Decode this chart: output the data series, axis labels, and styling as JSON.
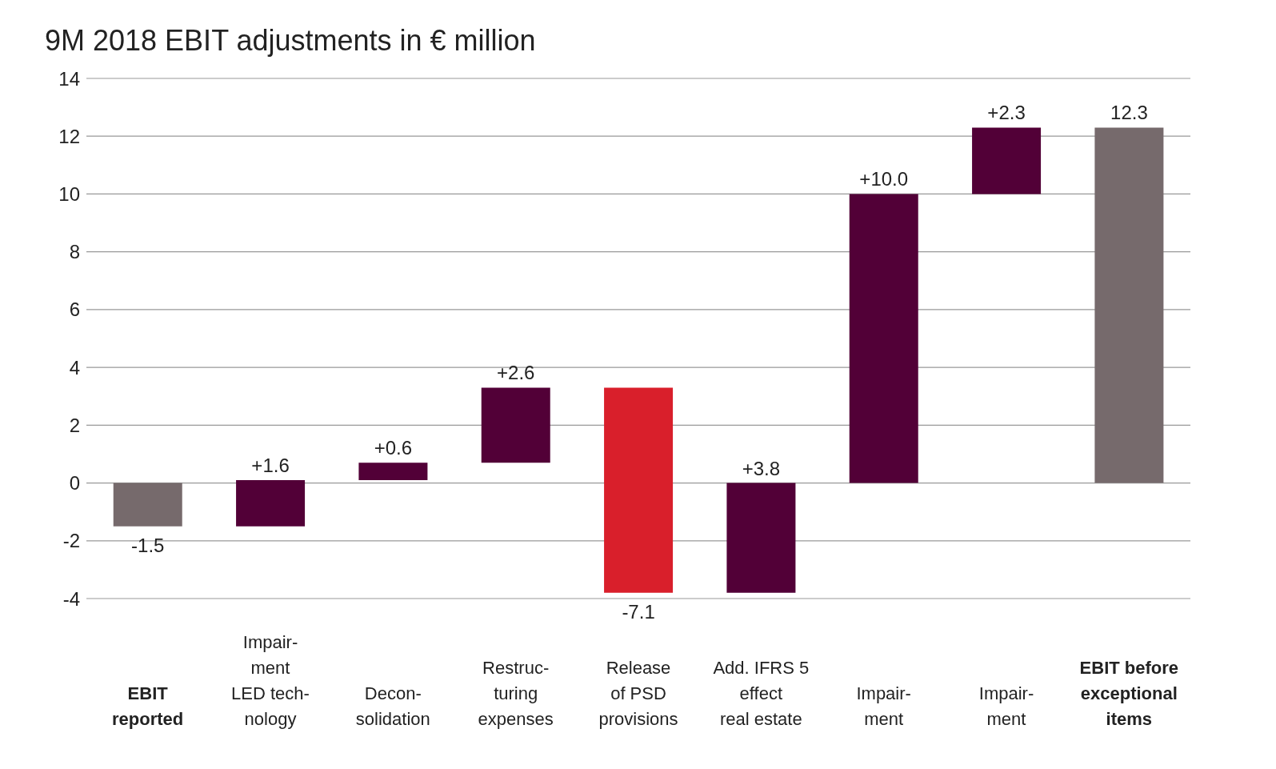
{
  "chart_data": {
    "type": "bar",
    "title": "9M 2018 EBIT adjustments in € million",
    "categories": [
      "EBIT\nreported",
      "Impair-\nment\nLED tech-\nnology",
      "Decon-\nsolidation",
      "Restruc-\nturing\nexpenses",
      "Release\nof PSD\nprovisions",
      "Add. IFRS 5\neffect\nreal estate",
      "Impair-\nment",
      "Impair-\nment",
      "EBIT before\nexceptional\nitems"
    ],
    "values": [
      -1.5,
      1.6,
      0.6,
      2.6,
      -7.1,
      3.8,
      10.0,
      2.3,
      12.3
    ],
    "base": [
      0,
      -1.5,
      0.1,
      0.7,
      3.3,
      -3.8,
      0,
      10.0,
      0
    ],
    "colors": [
      "#766a6c",
      "#520037",
      "#520037",
      "#520037",
      "#d91f2b",
      "#520037",
      "#520037",
      "#520037",
      "#766a6c"
    ],
    "value_labels": [
      "-1.5",
      "+1.6",
      "+0.6",
      "+2.6",
      "-7.1",
      "+3.8",
      "+10.0",
      "+2.3",
      "12.3"
    ],
    "ylim": [
      -4,
      14
    ],
    "yticks": [
      -4,
      -2,
      0,
      2,
      4,
      6,
      8,
      10,
      12,
      14
    ],
    "grid": "y"
  }
}
